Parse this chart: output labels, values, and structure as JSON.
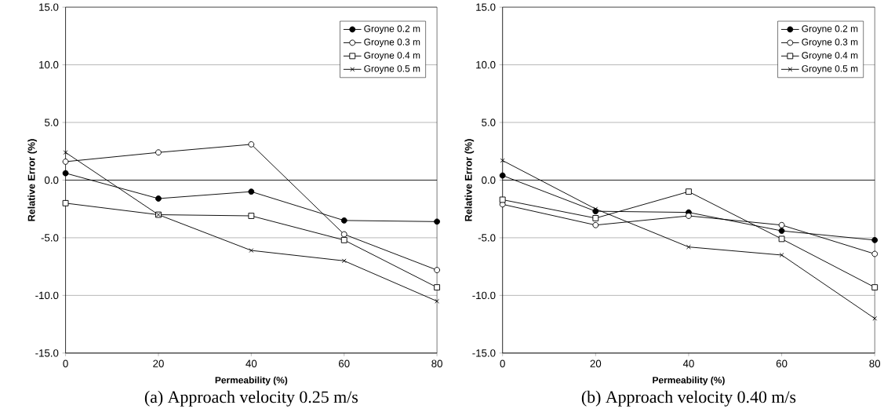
{
  "chart_data": [
    {
      "type": "line",
      "xlabel": "Permeability (%)",
      "ylabel": "Relative Error (%)",
      "annotations": [
        "(a) Approach velocity 0.25 m/s"
      ],
      "x": [
        0,
        20,
        40,
        60,
        80
      ],
      "xlim": [
        0,
        80
      ],
      "xticks": [
        0,
        20,
        40,
        60,
        80
      ],
      "ylim": [
        -15,
        15
      ],
      "yticks": [
        {
          "value": -15,
          "label": "-15.0"
        },
        {
          "value": -10,
          "label": "-10.0"
        },
        {
          "value": -5,
          "label": "-5.0"
        },
        {
          "value": 0,
          "label": "0.0"
        },
        {
          "value": 5,
          "label": "5.0"
        },
        {
          "value": 10,
          "label": "10.0"
        },
        {
          "value": 15,
          "label": "15.0"
        }
      ],
      "grid": "y",
      "legend": "top right",
      "series": [
        {
          "name": "Groyne 0.2 m",
          "color": "#000000",
          "marker": "circle",
          "values": [
            0.6,
            -1.6,
            -1.0,
            -3.5,
            -3.6
          ]
        },
        {
          "name": "Groyne 0.3 m",
          "color": "#000000",
          "marker": "circle_open",
          "values": [
            1.6,
            2.4,
            3.1,
            -4.7,
            -7.8
          ]
        },
        {
          "name": "Groyne 0.4 m",
          "color": "#000000",
          "marker": "square",
          "values": [
            -2.0,
            -3.0,
            -3.1,
            -5.2,
            -9.3
          ]
        },
        {
          "name": "Groyne 0.5 m",
          "color": "#000000",
          "marker": "cross",
          "values": [
            2.4,
            -3.0,
            -6.1,
            -7.0,
            -10.5
          ]
        }
      ]
    },
    {
      "type": "line",
      "xlabel": "Permeability (%)",
      "ylabel": "Relative Error (%)",
      "annotations": [
        "(b) Approach velocity 0.40 m/s"
      ],
      "x": [
        0,
        20,
        40,
        60,
        80
      ],
      "xlim": [
        0,
        80
      ],
      "xticks": [
        0,
        20,
        40,
        60,
        80
      ],
      "ylim": [
        -15,
        15
      ],
      "yticks": [
        {
          "value": -15,
          "label": "-15.0"
        },
        {
          "value": -10,
          "label": "-10.0"
        },
        {
          "value": -5,
          "label": "-5.0"
        },
        {
          "value": 0,
          "label": "0.0"
        },
        {
          "value": 5,
          "label": "5.0"
        },
        {
          "value": 10,
          "label": "10.0"
        },
        {
          "value": 15,
          "label": "15.0"
        }
      ],
      "grid": "y",
      "legend": "top right",
      "series": [
        {
          "name": "Groyne 0.2 m",
          "color": "#000000",
          "marker": "circle",
          "values": [
            0.4,
            -2.7,
            -2.8,
            -4.4,
            -5.2
          ]
        },
        {
          "name": "Groyne 0.3 m",
          "color": "#000000",
          "marker": "circle_open",
          "values": [
            -2.1,
            -3.9,
            -3.1,
            -3.9,
            -6.4
          ]
        },
        {
          "name": "Groyne 0.4 m",
          "color": "#000000",
          "marker": "square",
          "values": [
            -1.7,
            -3.3,
            -1.0,
            -5.1,
            -9.3
          ]
        },
        {
          "name": "Groyne 0.5 m",
          "color": "#000000",
          "marker": "cross",
          "values": [
            1.7,
            -2.5,
            -5.8,
            -6.5,
            -12.0
          ]
        }
      ]
    }
  ]
}
